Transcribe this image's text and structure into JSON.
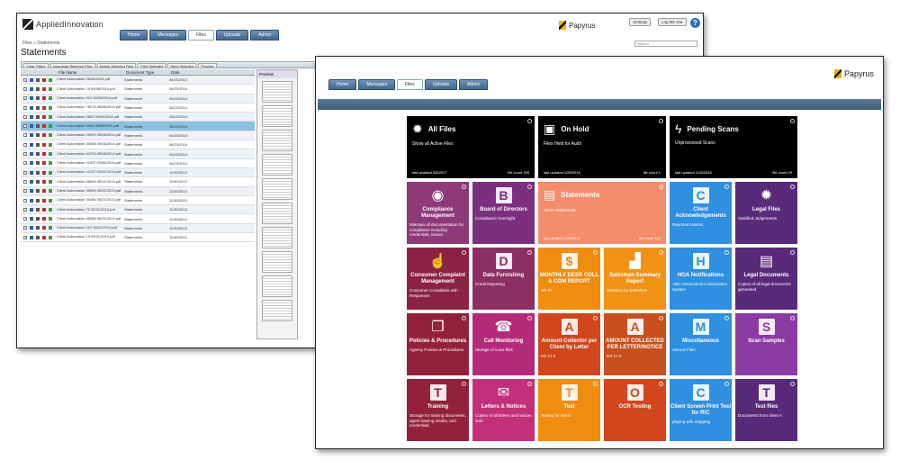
{
  "back_window": {
    "brand": "AppliedInnovation",
    "papyrus": "Papyrus",
    "tabs": [
      "Home",
      "Messages",
      "Files",
      "Uploads",
      "Admin"
    ],
    "top_buttons": [
      "Settings",
      "Log Me Out"
    ],
    "help": "?",
    "breadcrumb": "Files » Statements",
    "title": "Statements",
    "search_placeholder": "Search",
    "toolbar": [
      "Clear Filters",
      "Download Selected Files",
      "Delete Selected Files",
      "Print Selected",
      "Send Selected",
      "Preview"
    ],
    "columns": [
      "File Name",
      "Document Type",
      "Date"
    ],
    "rows": [
      {
        "name": "Client Automation 05/06/2014.pdf",
        "type": "Statements",
        "date": "06/23/2014"
      },
      {
        "name": "Client Automation 19 05/06/2014.pdf",
        "type": "Statements",
        "date": "06/23/2014"
      },
      {
        "name": "Client Automation 312 05/06/2014.pdf",
        "type": "Statements",
        "date": "06/23/2014"
      },
      {
        "name": "Client Automation 78276 05/06/2014.pdf",
        "type": "Statements",
        "date": "06/23/2014"
      },
      {
        "name": "Client Automation 0823 05/06/2014.pdf",
        "type": "Statements",
        "date": "06/23/2014"
      },
      {
        "name": "Client Automation 8658 05/06/2014.pdf",
        "type": "Statements",
        "date": "06/23/2014"
      },
      {
        "name": "Client Automation 25939 05/06/2014.pdf",
        "type": "Statements",
        "date": "06/23/2014"
      },
      {
        "name": "Client Automation 30008 05/06/2014.pdf",
        "type": "Statements",
        "date": "06/23/2014"
      },
      {
        "name": "Client Automation 64793 05/06/2014.pdf",
        "type": "Statements",
        "date": "06/23/2014"
      },
      {
        "name": "Client Automation 11937 05/06/2014.pdf",
        "type": "Statements",
        "date": "06/23/2014"
      },
      {
        "name": "Client Automation 11237 05/31/2013.pdf",
        "type": "Statements",
        "date": "11/30/2013"
      },
      {
        "name": "Client Automation 58098 05/31/2013.pdf",
        "type": "Statements",
        "date": "11/30/2013"
      },
      {
        "name": "Client Automation 30696 05/31/2013.pdf",
        "type": "Statements",
        "date": "11/30/2013"
      },
      {
        "name": "Client Automation 30484 05/31/2013.pdf",
        "type": "Statements",
        "date": "11/30/2013"
      },
      {
        "name": "Client Automation 72 05/31/2013.pdf",
        "type": "Statements",
        "date": "11/30/2013"
      },
      {
        "name": "Client Automation 88368 05/31/2013.pdf",
        "type": "Statements",
        "date": "11/30/2013"
      },
      {
        "name": "Client Automation 312 05/31/2013.pdf",
        "type": "Statements",
        "date": "11/30/2013"
      },
      {
        "name": "Client Automation 19 05/31/2013.pdf",
        "type": "Statements",
        "date": "11/30/2013"
      }
    ],
    "preview_title": "Preview"
  },
  "front_window": {
    "papyrus": "Papyrus",
    "tabs": [
      "Home",
      "Messages",
      "Files",
      "Uploads",
      "Admin"
    ],
    "tiles": [
      {
        "title": "All Files",
        "desc": "Show all Active Files",
        "updated": "last updated 5/8/2017",
        "count": "file count 255"
      },
      {
        "title": "On Hold",
        "desc": "Files Held for Audit",
        "updated": "last updated 1/26/2016",
        "count": "file count 1"
      },
      {
        "title": "Pending Scans",
        "desc": "Unprocessed Scans",
        "updated": "last updated 1/26/2016",
        "count": "file count 29"
      },
      {
        "title": "Compliance Management",
        "desc": "Maintain all documentation for compliance including credentials, issues"
      },
      {
        "letter": "B",
        "title": "Board of Directors",
        "desc": "Compliance Oversight"
      },
      {
        "title": "Statements",
        "desc": "Client Statements",
        "updated": "last updated 1/26/2016",
        "count": "file count 120"
      },
      {
        "letter": "C",
        "title": "Client Acknowledgements",
        "desc": "Reported returns,"
      },
      {
        "title": "Legal Files",
        "desc": "Satisfied Judgements"
      },
      {
        "title": "Consumer Complaint Management",
        "desc": "Consumer Complaints with Responses"
      },
      {
        "letter": "D",
        "title": "Data Furnishing",
        "desc": "Credit Reporting"
      },
      {
        "letter": "$",
        "title": "MONTHLY DESK COLL & COM REPORT",
        "desc": "VR-21"
      },
      {
        "title": "Salesman Summary Report",
        "desc": "Statistics by Salesman"
      },
      {
        "letter": "H",
        "title": "HOA Notifications",
        "desc": "ABC Homeowners Association System"
      },
      {
        "title": "Legal Documents",
        "desc": "Copies of all legal documents generated"
      },
      {
        "title": "Policies & Procedures",
        "desc": "Agency Policies & Procedures"
      },
      {
        "title": "Call Monitoring",
        "desc": "Storage of voice files"
      },
      {
        "letter": "A",
        "title": "Amount Collector per Client by Letter",
        "desc": "HS 17.2"
      },
      {
        "letter": "A",
        "title": "AMOUNT COLLECTED PER LETTER/NOTICE",
        "desc": "MT 17.2"
      },
      {
        "letter": "M",
        "title": "Miscellaneous",
        "desc": "Various Files"
      },
      {
        "letter": "S",
        "title": "Scan Samples",
        "desc": ""
      },
      {
        "letter": "T",
        "title": "Training",
        "desc": "Storage for training documents, agent training results, and credentials"
      },
      {
        "title": "Letters & Notices",
        "desc": "Copies of all letters and notices sent"
      },
      {
        "letter": "T",
        "title": "Test",
        "desc": "Testing for demo"
      },
      {
        "letter": "O",
        "title": "OCR Testing",
        "desc": ""
      },
      {
        "letter": "C",
        "title": "Client Screen Print Test for R/C",
        "desc": "playing with mapping"
      },
      {
        "letter": "T",
        "title": "Test files",
        "desc": "Documents from client A"
      }
    ],
    "colors": {
      "black": "#000000",
      "purple_mag": "#8e3a78",
      "purple": "#7b2f7e",
      "salmon": "#f58c6b",
      "blue": "#2f8fe0",
      "deep_purple": "#5a2a7a",
      "maroon": "#8a2244",
      "plum": "#8c2f63",
      "orange": "#f08c10",
      "orange2": "#f29215",
      "crimson": "#93213b",
      "magenta": "#b32a7a",
      "red_orange": "#d2461e",
      "rust": "#c8501e",
      "violet": "#8b3aa5",
      "pink": "#c2307a"
    }
  }
}
